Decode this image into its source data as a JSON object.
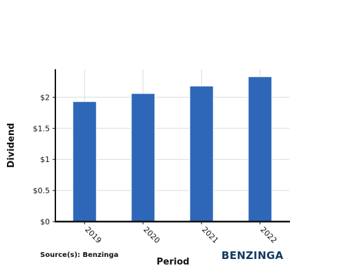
{
  "chart_data": {
    "type": "bar",
    "categories": [
      "2019",
      "2020",
      "2021",
      "2022"
    ],
    "values": [
      1.93,
      2.06,
      2.18,
      2.33
    ],
    "xlabel": "Period",
    "ylabel": "Dividend",
    "ylim": [
      0,
      2.45
    ],
    "yticks": [
      0,
      0.5,
      1,
      1.5,
      2
    ],
    "ytick_labels": [
      "$0",
      "$0.5",
      "$1",
      "$1.5",
      "$2"
    ],
    "grid": true,
    "bar_color": "#2e67b8"
  },
  "source": "Source(s): Benzinga",
  "logo": {
    "text": "BENZINGA",
    "color": "#123a5f"
  }
}
